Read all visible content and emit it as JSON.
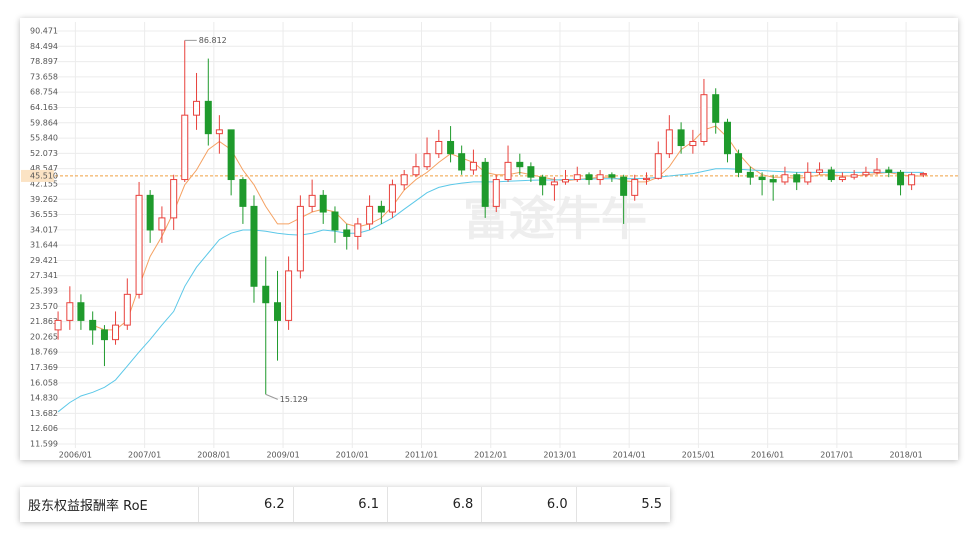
{
  "chart_data": {
    "type": "candlestick",
    "grid": true,
    "watermark": "富途牛牛",
    "up_color": "#e8413c",
    "down_color": "#1f9a2c",
    "xlim": [
      2005.2,
      2018.75
    ],
    "xticks": [
      {
        "value": 2006,
        "label": "2006/01"
      },
      {
        "value": 2007,
        "label": "2007/01"
      },
      {
        "value": 2008,
        "label": "2008/01"
      },
      {
        "value": 2009,
        "label": "2009/01"
      },
      {
        "value": 2010,
        "label": "2010/01"
      },
      {
        "value": 2011,
        "label": "2011/01"
      },
      {
        "value": 2012,
        "label": "2012/01"
      },
      {
        "value": 2013,
        "label": "2013/01"
      },
      {
        "value": 2014,
        "label": "2014/01"
      },
      {
        "value": 2015,
        "label": "2015/01"
      },
      {
        "value": 2016,
        "label": "2016/01"
      },
      {
        "value": 2017,
        "label": "2017/01"
      },
      {
        "value": 2018,
        "label": "2018/01"
      }
    ],
    "ylim": [
      11.599,
      90.471
    ],
    "yticks": [
      90.471,
      84.494,
      78.897,
      73.658,
      68.754,
      64.163,
      59.864,
      {
        "value": 55.84,
        "label": "55.840"
      },
      52.073,
      48.547,
      42.155,
      39.262,
      36.553,
      34.017,
      31.644,
      29.421,
      27.341,
      25.393,
      {
        "value": 23.57,
        "label": "23.570"
      },
      21.863,
      20.265,
      18.769,
      17.369,
      16.058,
      {
        "value": 14.83,
        "label": "14.830"
      },
      13.682,
      12.606,
      11.599
    ],
    "current_price": {
      "value": 45.51,
      "label": "45.510",
      "color": "#f0a040"
    },
    "max_label": 86.812,
    "min_label": 15.129,
    "x": [
      2005.75,
      2005.92,
      2006.08,
      2006.25,
      2006.42,
      2006.58,
      2006.75,
      2006.92,
      2007.08,
      2007.25,
      2007.42,
      2007.58,
      2007.75,
      2007.92,
      2008.08,
      2008.25,
      2008.42,
      2008.58,
      2008.75,
      2008.92,
      2009.08,
      2009.25,
      2009.42,
      2009.58,
      2009.75,
      2009.92,
      2010.08,
      2010.25,
      2010.42,
      2010.58,
      2010.75,
      2010.92,
      2011.08,
      2011.25,
      2011.42,
      2011.58,
      2011.75,
      2011.92,
      2012.08,
      2012.25,
      2012.42,
      2012.58,
      2012.75,
      2012.92,
      2013.08,
      2013.25,
      2013.42,
      2013.58,
      2013.75,
      2013.92,
      2014.08,
      2014.25,
      2014.42,
      2014.58,
      2014.75,
      2014.92,
      2015.08,
      2015.25,
      2015.42,
      2015.58,
      2015.75,
      2015.92,
      2016.08,
      2016.25,
      2016.42,
      2016.58,
      2016.75,
      2016.92,
      2017.08,
      2017.25,
      2017.42,
      2017.58,
      2017.75,
      2017.92,
      2018.08,
      2018.25
    ],
    "open": [
      21,
      22,
      24,
      22,
      21,
      20,
      21.5,
      25,
      40,
      34,
      36,
      44,
      62,
      66,
      57,
      58,
      44,
      38,
      26,
      24,
      22,
      28,
      38,
      40,
      37,
      34,
      33,
      35,
      38,
      37,
      42,
      46,
      49,
      52,
      55,
      52,
      48,
      50,
      38,
      44,
      50,
      49,
      45,
      42,
      43,
      44,
      46,
      44,
      46,
      45,
      40,
      44,
      44.5,
      52,
      58,
      54,
      55,
      68,
      60,
      52,
      47,
      45,
      44,
      43,
      46,
      43,
      47,
      48,
      44,
      45,
      46,
      47,
      48,
      47,
      42,
      46
    ],
    "high": [
      23,
      26,
      25,
      23,
      21.5,
      23,
      27,
      43,
      41,
      38,
      46,
      86.812,
      75,
      80,
      62,
      58,
      45,
      40,
      30,
      28,
      30,
      40,
      44,
      41,
      38,
      35,
      36,
      40,
      39,
      44,
      48,
      52,
      56,
      58,
      59,
      54,
      53,
      51,
      46,
      54,
      52,
      50,
      46,
      45,
      48,
      49,
      47,
      48,
      47,
      46,
      46,
      47,
      55,
      62,
      60,
      58,
      73,
      70,
      61,
      53,
      49,
      47,
      46,
      49,
      47,
      50,
      50,
      49,
      47,
      48,
      49,
      51,
      49,
      48,
      47,
      47
    ],
    "low": [
      20,
      21,
      21,
      19.5,
      17.5,
      19.5,
      21,
      24.5,
      32,
      32,
      34,
      43,
      58,
      54,
      52,
      40,
      35,
      24,
      15.129,
      18,
      21,
      27,
      37,
      35,
      32,
      31,
      31,
      34,
      35,
      36,
      41,
      45,
      48,
      51,
      50,
      46,
      46,
      36,
      37,
      43,
      46,
      43,
      40,
      39,
      42,
      43,
      42,
      42,
      43,
      35,
      39,
      42,
      44,
      51,
      52,
      52,
      54,
      57,
      50,
      45,
      42,
      40,
      39,
      42,
      41,
      42,
      46,
      43,
      43,
      44,
      45,
      46,
      45,
      40,
      41,
      45
    ],
    "close": [
      22,
      24,
      22,
      21,
      20,
      21.5,
      25,
      40,
      34,
      36,
      44,
      62,
      66,
      57,
      58,
      44,
      38,
      26,
      24,
      22,
      28,
      38,
      40,
      37,
      34,
      33,
      35,
      38,
      37,
      42,
      46,
      49,
      52,
      55,
      52,
      48,
      50,
      38,
      44,
      50,
      49,
      45,
      42,
      43,
      44,
      46,
      44,
      46,
      45,
      40,
      44,
      44.5,
      52,
      58,
      54,
      55,
      68,
      60,
      52,
      47,
      45,
      44,
      43,
      46,
      43,
      47,
      48,
      44,
      45,
      46,
      47,
      48,
      47,
      42,
      46,
      46.5
    ],
    "moving_averages": [
      {
        "color": "#f5a263",
        "values": [
          null,
          null,
          null,
          21.5,
          21,
          21,
          22,
          26,
          30,
          33,
          37,
          42,
          48,
          53,
          55,
          53,
          48,
          42,
          38,
          35,
          35,
          36,
          37,
          37.5,
          37,
          35,
          34.5,
          35,
          36,
          38,
          41,
          44,
          47,
          50,
          52,
          51,
          50,
          47,
          46,
          46,
          47,
          46,
          45,
          44,
          43.5,
          44,
          44.5,
          45,
          45,
          43.5,
          43,
          43,
          45,
          49,
          53,
          55,
          58,
          59,
          56,
          52,
          49,
          46,
          45,
          45,
          44.5,
          45,
          46,
          46,
          45.5,
          45.5,
          46,
          46.5,
          47,
          46,
          45.5,
          45.5
        ]
      },
      {
        "color": "#5cc8e8",
        "values": [
          13.8,
          14.5,
          15,
          15.3,
          15.7,
          16.3,
          17.5,
          18.8,
          20,
          21.5,
          23,
          26,
          28.5,
          30.5,
          32.5,
          33.5,
          34,
          34,
          33.8,
          33.5,
          33.3,
          33.2,
          33.5,
          34,
          33.8,
          33.5,
          33.5,
          34,
          35,
          36,
          37.5,
          39,
          40.5,
          41.5,
          42,
          42.5,
          43,
          43,
          43,
          43.3,
          43.5,
          43.7,
          43.8,
          43.8,
          44,
          44,
          44.2,
          44.3,
          44.3,
          44.3,
          44.4,
          44.5,
          45,
          45.5,
          46,
          46.5,
          47.5,
          48.5,
          48.5,
          48.3,
          48,
          47.8,
          47.5,
          47.3,
          47,
          47,
          47,
          47,
          47,
          47,
          47,
          47,
          47,
          47,
          47,
          47
        ]
      }
    ]
  },
  "table": {
    "rows": [
      [
        "股东权益报酬率 RoE",
        "6.2",
        "6.1",
        "6.8",
        "6.0",
        "5.5"
      ]
    ]
  }
}
